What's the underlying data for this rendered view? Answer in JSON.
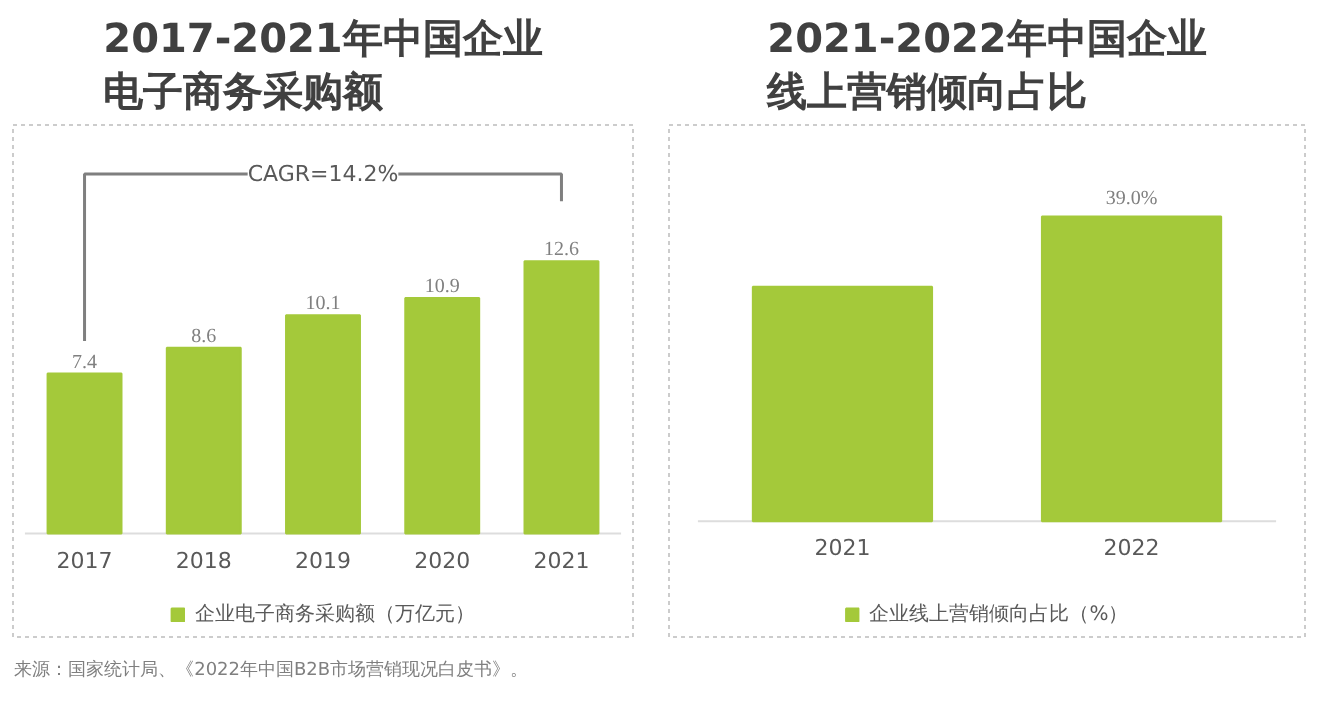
{
  "chart_data": [
    {
      "type": "bar",
      "title": "2017-2021年中国企业电子商务采购额",
      "categories": [
        "2017",
        "2018",
        "2019",
        "2020",
        "2021"
      ],
      "series": [
        {
          "name": "企业电子商务采购额（万亿元）",
          "color": "#a4c93a",
          "values": [
            7.4,
            8.6,
            10.1,
            10.9,
            12.6
          ]
        }
      ],
      "data_labels": true,
      "legend": "bottom",
      "grid": false,
      "annotations": [
        "CAGR=14.2%",
        "来源：国家统计局、《2022年中国B2B市场营销现况白皮书》。"
      ]
    },
    {
      "type": "bar",
      "title": "2021-2022年中国企业线上营销倾向占比",
      "categories": [
        "2021",
        "2022"
      ],
      "series": [
        {
          "name": "企业线上营销倾向占比（%）",
          "color": "#a4c93a",
          "values": [
            30.0,
            39.0
          ],
          "value_labels": [
            null,
            "39.0%"
          ]
        }
      ],
      "legend": "bottom",
      "grid": false
    }
  ]
}
